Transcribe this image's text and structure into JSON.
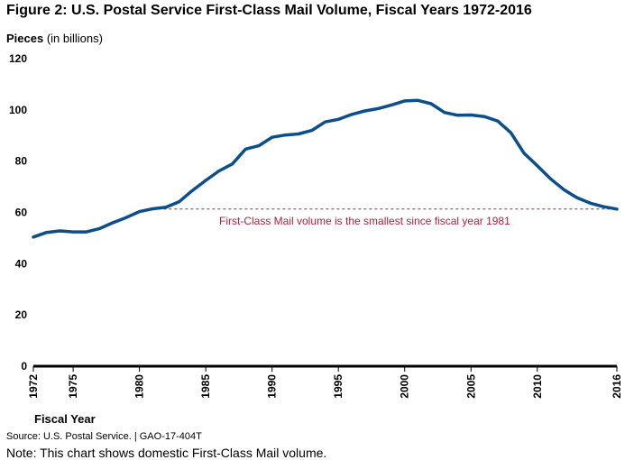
{
  "figure": {
    "title": "Figure 2: U.S. Postal Service First-Class Mail Volume, Fiscal Years 1972-2016",
    "ylabel_bold": "Pieces",
    "ylabel_rest": " (in billions)",
    "xlabel": "Fiscal Year",
    "source": "Source: U.S. Postal Service.  |  GAO-17-404T",
    "note": "Note: This chart shows domestic First-Class Mail volume."
  },
  "colors": {
    "line": "#0b4f8a",
    "reference": "#b0203a",
    "axis": "#000000"
  },
  "chart_data": {
    "type": "line",
    "title": "Figure 2: U.S. Postal Service First-Class Mail Volume, Fiscal Years 1972-2016",
    "xlabel": "Fiscal Year",
    "ylabel": "Pieces (in billions)",
    "ylim": [
      0,
      120
    ],
    "yticks": [
      0,
      20,
      40,
      60,
      80,
      100,
      120
    ],
    "xlim": [
      1972,
      2016
    ],
    "xticks": [
      1972,
      1975,
      1980,
      1985,
      1990,
      1995,
      2000,
      2005,
      2010,
      2016
    ],
    "grid": false,
    "series": [
      {
        "name": "First-Class Mail volume",
        "x": [
          1972,
          1973,
          1974,
          1975,
          1976,
          1977,
          1978,
          1979,
          1980,
          1981,
          1982,
          1983,
          1984,
          1985,
          1986,
          1987,
          1988,
          1989,
          1990,
          1991,
          1992,
          1993,
          1994,
          1995,
          1996,
          1997,
          1998,
          1999,
          2000,
          2001,
          2002,
          2003,
          2004,
          2005,
          2006,
          2007,
          2008,
          2009,
          2010,
          2011,
          2012,
          2013,
          2014,
          2015,
          2016
        ],
        "values": [
          50.4,
          52.2,
          52.8,
          52.4,
          52.4,
          53.7,
          56,
          58,
          60.3,
          61.4,
          62,
          64.2,
          68.6,
          72.5,
          76.2,
          78.9,
          84.7,
          86,
          89.3,
          90.2,
          90.6,
          92,
          95.3,
          96.3,
          98.2,
          99.6,
          100.5,
          101.9,
          103.5,
          103.7,
          102.4,
          99,
          97.9,
          98,
          97.4,
          95.7,
          91.1,
          83.1,
          78.2,
          73.1,
          68.9,
          65.7,
          63.6,
          62.2,
          61.3
        ]
      }
    ],
    "reference_line": {
      "y": 61.3,
      "label": "First-Class Mail volume is the smallest since fiscal year 1981"
    }
  }
}
